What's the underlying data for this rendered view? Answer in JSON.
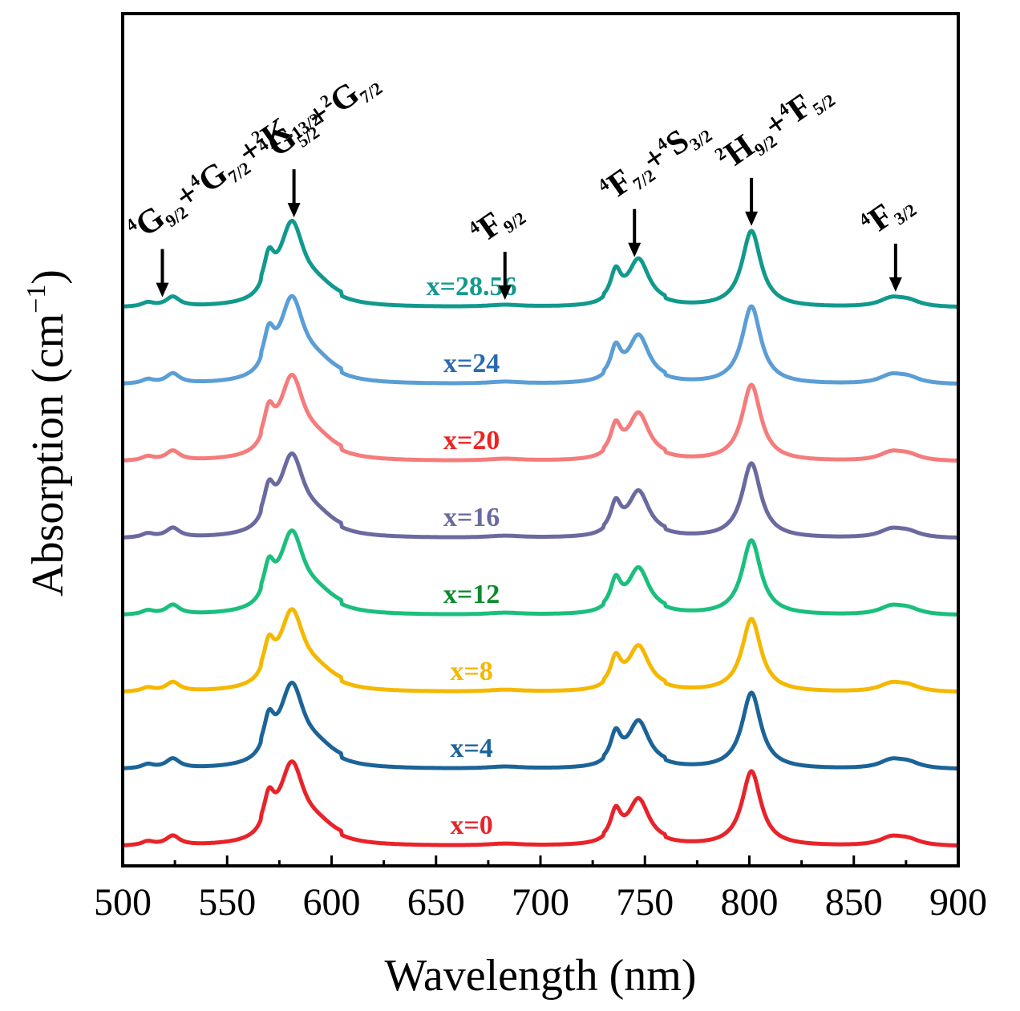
{
  "chart_data": {
    "type": "line",
    "title": "",
    "xlabel": "Wavelength (nm)",
    "ylabel": "Absorption (cm",
    "ylabel_sup": "−1",
    "ylabel_close": ")",
    "xlim": [
      500,
      900
    ],
    "x_ticks": [
      "500",
      "550",
      "600",
      "650",
      "700",
      "750",
      "800",
      "850",
      "900"
    ],
    "y_ticks": [],
    "grid": false,
    "legend": "inline labels",
    "peaks": [
      {
        "c": 512,
        "a": 0.05,
        "w": 3.5
      },
      {
        "c": 524,
        "a": 0.12,
        "w": 4
      },
      {
        "c": 570,
        "a": 0.4,
        "w": 3
      },
      {
        "c": 581,
        "a": 0.95,
        "w": 7
      },
      {
        "c": 594,
        "a": 0.15,
        "w": 10
      },
      {
        "c": 683,
        "a": 0.025,
        "w": 10
      },
      {
        "c": 736,
        "a": 0.35,
        "w": 3
      },
      {
        "c": 747,
        "a": 0.55,
        "w": 6
      },
      {
        "c": 801,
        "a": 0.95,
        "w": 5.5
      },
      {
        "c": 868,
        "a": 0.1,
        "w": 7
      },
      {
        "c": 876,
        "a": 0.07,
        "w": 7
      }
    ],
    "series": [
      {
        "name": "x=0",
        "color": "#e8232a",
        "offset": 0,
        "scale": 0.98
      },
      {
        "name": "x=4",
        "color": "#1c6498",
        "offset": 1,
        "scale": 1.0
      },
      {
        "name": "x=8",
        "color": "#f5b800",
        "offset": 2,
        "scale": 0.96
      },
      {
        "name": "x=12",
        "color": "#1bbf7d",
        "offset": 3,
        "scale": 0.98,
        "label_color": "#0d8a2c"
      },
      {
        "name": "x=16",
        "color": "#6a6aa0",
        "offset": 4,
        "scale": 0.98
      },
      {
        "name": "x=20",
        "color": "#f57c7c",
        "offset": 5,
        "scale": 1.0,
        "label_color": "#ee2222"
      },
      {
        "name": "x=24",
        "color": "#5b9ed6",
        "offset": 6,
        "scale": 1.02,
        "label_color": "#2a6ab0"
      },
      {
        "name": "x=28.56",
        "color": "#12998e",
        "offset": 7,
        "scale": 1.0
      }
    ],
    "annotations": [
      {
        "x": 519,
        "parts": [
          [
            "sup",
            "4"
          ],
          [
            "main",
            "G"
          ],
          [
            "sub",
            "9/2"
          ],
          [
            "main",
            "+"
          ],
          [
            "sup",
            "4"
          ],
          [
            "main",
            "G"
          ],
          [
            "sub",
            "7/2"
          ],
          [
            "main",
            "+"
          ],
          [
            "sup",
            "2"
          ],
          [
            "main",
            "K"
          ],
          [
            "sub",
            "13/2"
          ]
        ]
      },
      {
        "x": 582,
        "parts": [
          [
            "sup",
            "4"
          ],
          [
            "main",
            "G"
          ],
          [
            "sub",
            "5/2"
          ],
          [
            "main",
            "+"
          ],
          [
            "sup",
            "2"
          ],
          [
            "main",
            "G"
          ],
          [
            "sub",
            "7/2"
          ]
        ]
      },
      {
        "x": 683,
        "parts": [
          [
            "sup",
            "4"
          ],
          [
            "main",
            "F"
          ],
          [
            "sub",
            "9/2"
          ]
        ]
      },
      {
        "x": 745,
        "parts": [
          [
            "sup",
            "4"
          ],
          [
            "main",
            "F"
          ],
          [
            "sub",
            "7/2"
          ],
          [
            "main",
            "+"
          ],
          [
            "sup",
            "4"
          ],
          [
            "main",
            "S"
          ],
          [
            "sub",
            "3/2"
          ]
        ]
      },
      {
        "x": 801,
        "parts": [
          [
            "sup",
            "2"
          ],
          [
            "main",
            "H"
          ],
          [
            "sub",
            "9/2"
          ],
          [
            "main",
            "+"
          ],
          [
            "sup",
            "4"
          ],
          [
            "main",
            "F"
          ],
          [
            "sub",
            "5/2"
          ]
        ]
      },
      {
        "x": 870,
        "parts": [
          [
            "sup",
            "4"
          ],
          [
            "main",
            "F"
          ],
          [
            "sub",
            "3/2"
          ]
        ]
      }
    ]
  }
}
